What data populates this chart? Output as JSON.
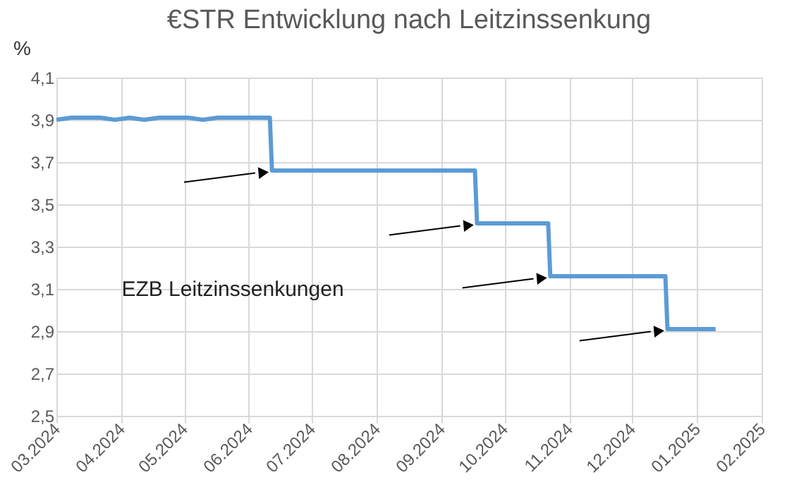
{
  "chart_data": {
    "type": "line",
    "title": "€STR Entwicklung nach Leitzinssenkung",
    "ylabel": "%",
    "annotations": [
      "EZB Leitzinssenkungen"
    ],
    "x": [
      "2024-03-01",
      "2024-03-08",
      "2024-03-15",
      "2024-03-22",
      "2024-03-29",
      "2024-04-05",
      "2024-04-12",
      "2024-04-19",
      "2024-04-26",
      "2024-05-03",
      "2024-05-10",
      "2024-05-17",
      "2024-05-24",
      "2024-05-31",
      "2024-06-07",
      "2024-06-11",
      "2024-06-12",
      "2024-06-19",
      "2024-06-26",
      "2024-07-03",
      "2024-07-10",
      "2024-07-17",
      "2024-07-24",
      "2024-07-31",
      "2024-08-07",
      "2024-08-14",
      "2024-08-21",
      "2024-08-28",
      "2024-09-04",
      "2024-09-11",
      "2024-09-17",
      "2024-09-18",
      "2024-09-25",
      "2024-10-02",
      "2024-10-09",
      "2024-10-16",
      "2024-10-22",
      "2024-10-23",
      "2024-10-30",
      "2024-11-06",
      "2024-11-13",
      "2024-11-20",
      "2024-11-27",
      "2024-12-04",
      "2024-12-11",
      "2024-12-17",
      "2024-12-18",
      "2024-12-25",
      "2025-01-01",
      "2025-01-10"
    ],
    "series": [
      {
        "color": "#5b9bd5",
        "values": [
          3.9,
          3.91,
          3.91,
          3.91,
          3.9,
          3.91,
          3.9,
          3.91,
          3.91,
          3.91,
          3.9,
          3.91,
          3.91,
          3.91,
          3.91,
          3.91,
          3.66,
          3.66,
          3.66,
          3.66,
          3.66,
          3.66,
          3.66,
          3.66,
          3.66,
          3.66,
          3.66,
          3.66,
          3.66,
          3.66,
          3.66,
          3.41,
          3.41,
          3.41,
          3.41,
          3.41,
          3.41,
          3.16,
          3.16,
          3.16,
          3.16,
          3.16,
          3.16,
          3.16,
          3.16,
          3.16,
          2.91,
          2.91,
          2.91,
          2.91
        ]
      }
    ],
    "ylim": [
      2.5,
      4.1
    ],
    "yticks": [
      {
        "value": 2.5,
        "label": "2,5"
      },
      {
        "value": 2.7,
        "label": "2,7"
      },
      {
        "value": 2.9,
        "label": "2,9"
      },
      {
        "value": 3.1,
        "label": "3,1"
      },
      {
        "value": 3.3,
        "label": "3,3"
      },
      {
        "value": 3.5,
        "label": "3,5"
      },
      {
        "value": 3.7,
        "label": "3,7"
      },
      {
        "value": 3.9,
        "label": "3,9"
      },
      {
        "value": 4.1,
        "label": "4,1"
      }
    ],
    "xlim": [
      "2024-03-01",
      "2025-02-01"
    ],
    "xticks": [
      {
        "value": "2024-03-01",
        "label": "03.2024"
      },
      {
        "value": "2024-04-01",
        "label": "04.2024"
      },
      {
        "value": "2024-05-01",
        "label": "05.2024"
      },
      {
        "value": "2024-06-01",
        "label": "06.2024"
      },
      {
        "value": "2024-07-01",
        "label": "07.2024"
      },
      {
        "value": "2024-08-01",
        "label": "08.2024"
      },
      {
        "value": "2024-09-01",
        "label": "09.2024"
      },
      {
        "value": "2024-10-01",
        "label": "10.2024"
      },
      {
        "value": "2024-11-01",
        "label": "11.2024"
      },
      {
        "value": "2024-12-01",
        "label": "12.2024"
      },
      {
        "value": "2025-01-01",
        "label": "01.2025"
      },
      {
        "value": "2025-02-01",
        "label": "02.2025"
      }
    ],
    "grid": true,
    "marker": "none",
    "line_style": "solid",
    "legend": false
  }
}
